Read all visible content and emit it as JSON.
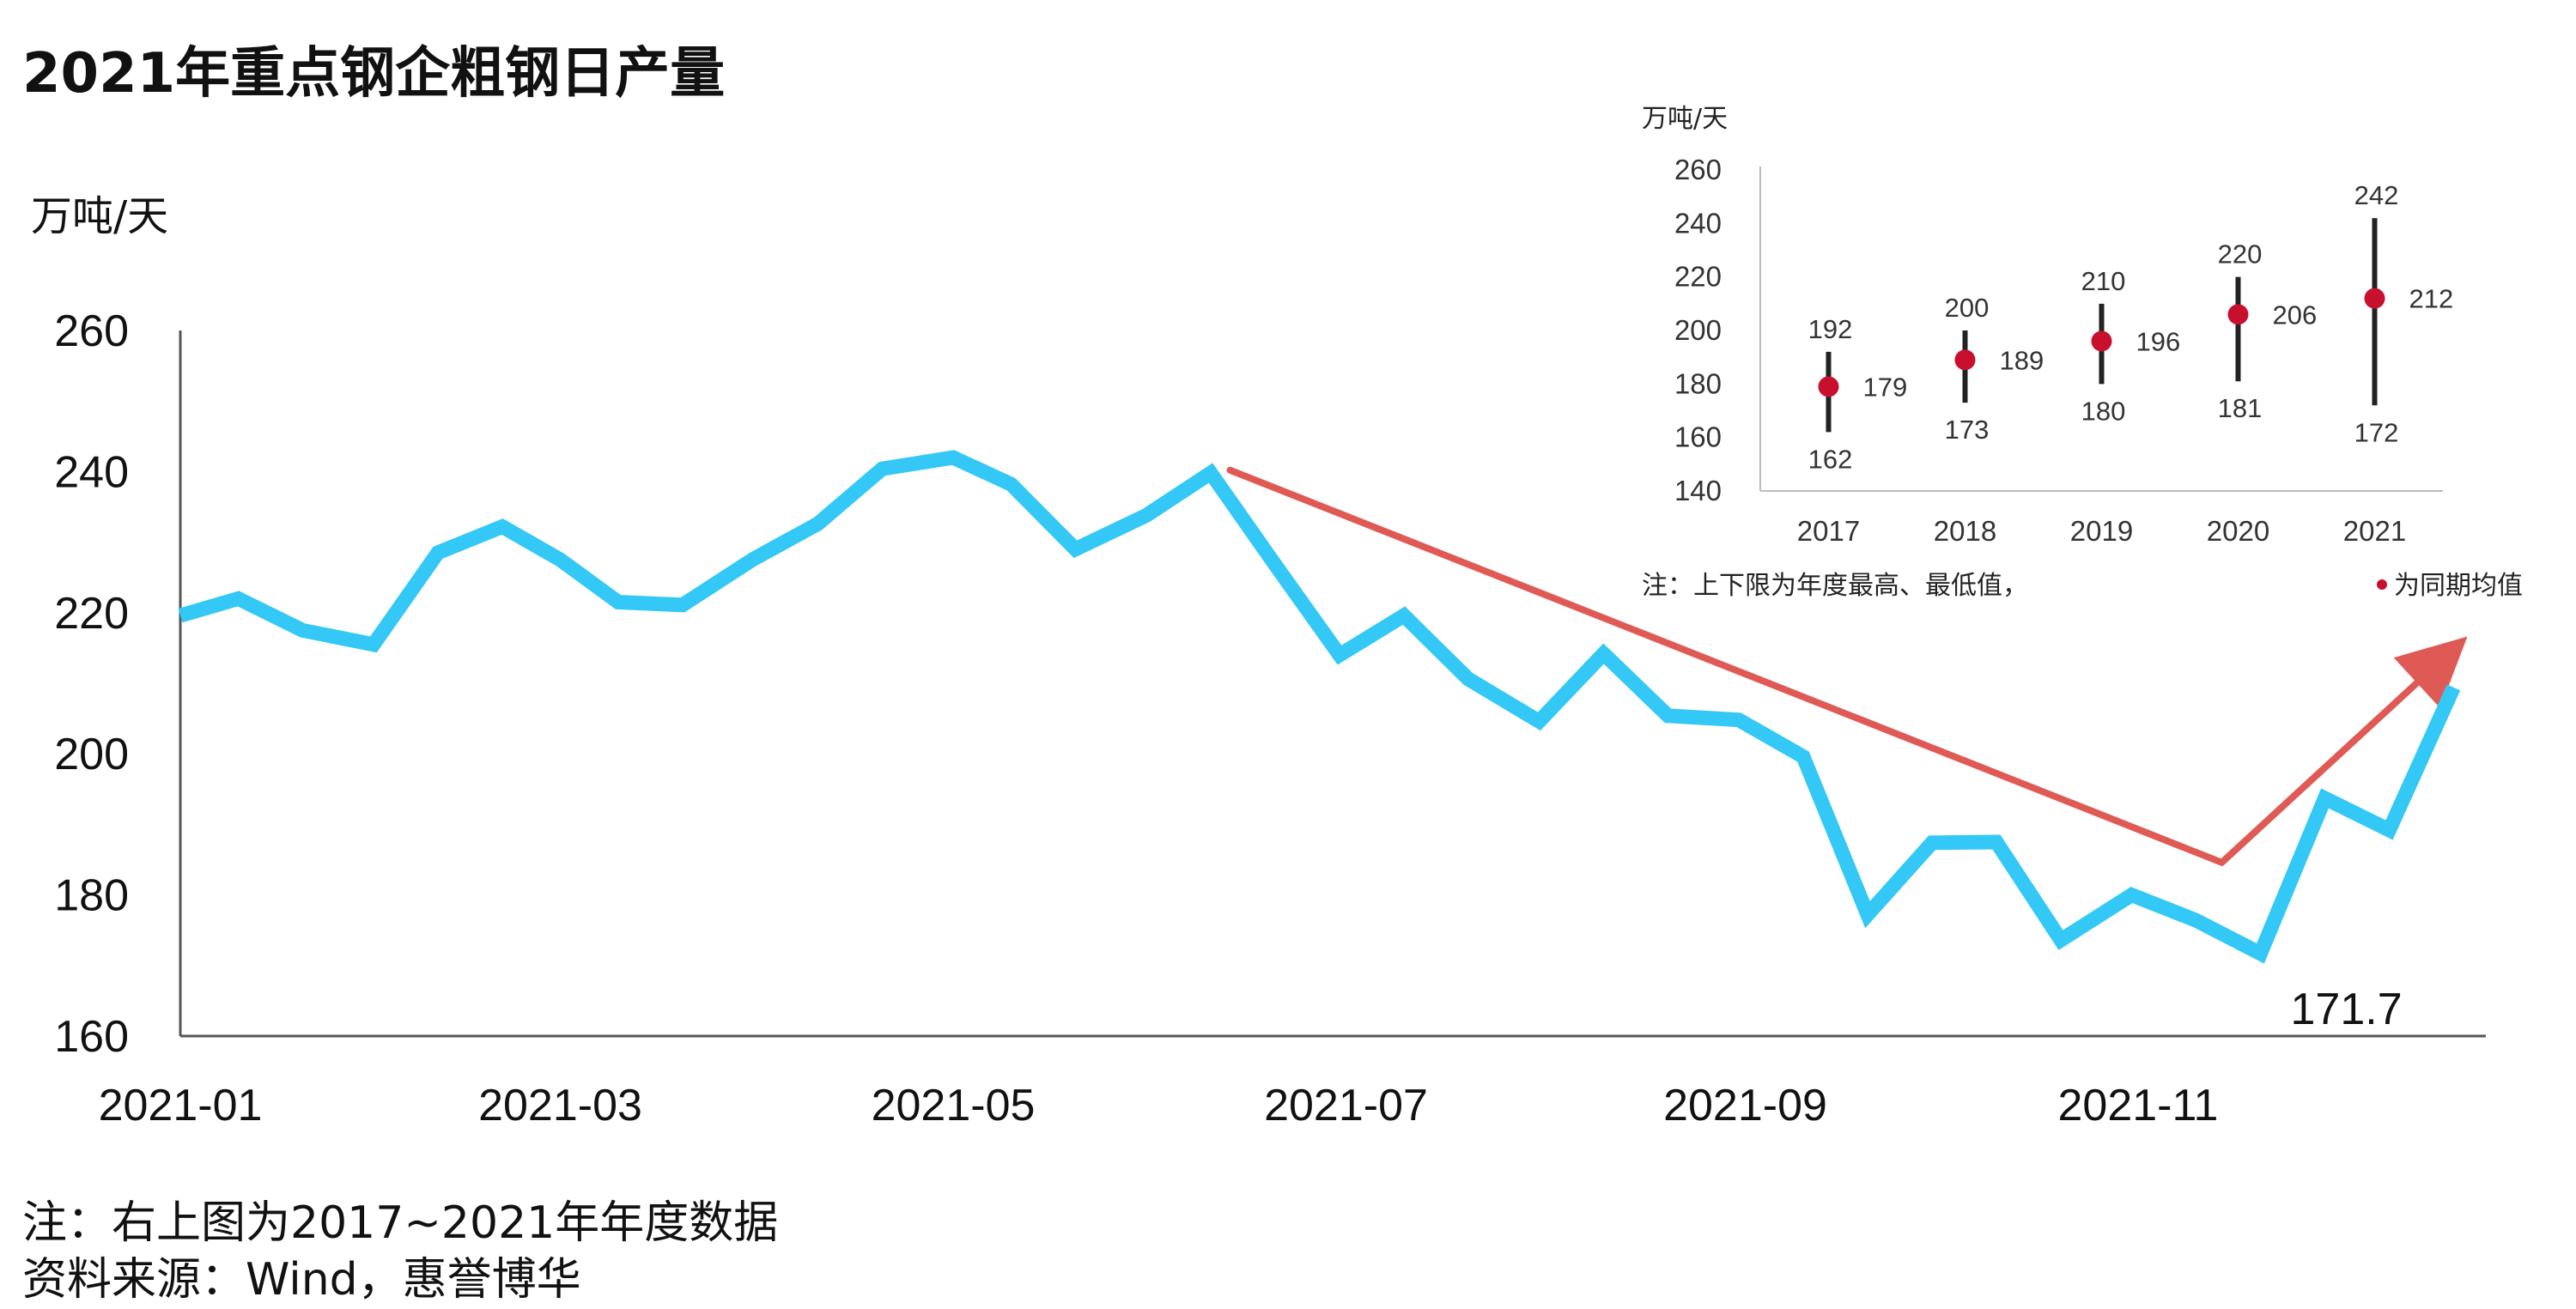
{
  "title": "2021年重点钢企粗钢日产量",
  "notes": {
    "line1": "注：右上图为2017~2021年年度数据",
    "line2": "资料来源：Wind，惠誉博华"
  },
  "colors": {
    "line": "#33c8f5",
    "trend": "#e05a55",
    "axis": "#555555",
    "inset_dot": "#c8102e",
    "inset_bar": "#222222"
  },
  "chart_data": [
    {
      "type": "line",
      "title": "2021年重点钢企粗钢日产量",
      "ylabel": "万吨/天",
      "ylim": [
        160,
        260
      ],
      "yticks": [
        "260",
        "240",
        "220",
        "200",
        "180",
        "160"
      ],
      "xlim": [
        "2021-01-01",
        "2021-12-25"
      ],
      "xticks": [
        "2021-01",
        "2021-03",
        "2021-05",
        "2021-07",
        "2021-09",
        "2021-11"
      ],
      "series": [
        {
          "x": [
            "2021-01-01",
            "2021-01-10",
            "2021-01-20",
            "2021-01-31",
            "2021-02-10",
            "2021-02-20",
            "2021-03-01",
            "2021-03-10",
            "2021-03-20",
            "2021-03-31",
            "2021-04-10",
            "2021-04-20",
            "2021-05-01",
            "2021-05-10",
            "2021-05-20",
            "2021-05-31",
            "2021-06-10",
            "2021-06-20",
            "2021-06-30",
            "2021-07-10",
            "2021-07-20",
            "2021-07-31",
            "2021-08-10",
            "2021-08-20",
            "2021-08-31",
            "2021-09-10",
            "2021-09-20",
            "2021-09-30",
            "2021-10-10",
            "2021-10-20",
            "2021-10-31",
            "2021-11-10",
            "2021-11-20",
            "2021-11-30",
            "2021-12-10",
            "2021-12-20"
          ],
          "values": [
            219.6,
            222.0,
            217.5,
            215.5,
            228.5,
            232.2,
            227.5,
            221.5,
            221.1,
            227.6,
            232.6,
            240.4,
            242.0,
            238.2,
            229.0,
            233.8,
            239.8,
            226.8,
            214.0,
            219.6,
            210.6,
            204.6,
            214.2,
            205.4,
            204.8,
            199.6,
            177.2,
            187.4,
            187.5,
            173.6,
            180.0,
            176.4,
            171.7,
            193.7,
            189.2,
            209.4
          ]
        }
      ],
      "annotations": [
        {
          "text": "171.7",
          "x": "2021-11-20",
          "y": 171.7
        }
      ],
      "trend_arrows": [
        {
          "from": {
            "x": "2021-06-13",
            "y": 240.2
          },
          "to": {
            "x": "2021-11-14",
            "y": 184.6
          },
          "arrowhead": false
        },
        {
          "from": {
            "x": "2021-11-14",
            "y": 184.6
          },
          "to": {
            "x": "2021-12-19",
            "y": 214.0
          },
          "arrowhead": true
        }
      ]
    },
    {
      "type": "errorbar",
      "ylabel": "万吨/天",
      "ylim": [
        140,
        260
      ],
      "yticks": [
        "260",
        "240",
        "220",
        "200",
        "180",
        "160",
        "140"
      ],
      "categories": [
        "2017",
        "2018",
        "2019",
        "2020",
        "2021"
      ],
      "max": [
        192,
        200,
        210,
        220,
        242
      ],
      "min": [
        162,
        173,
        180,
        181,
        172
      ],
      "mean": [
        179,
        189,
        196,
        206,
        212
      ],
      "note_prefix": "注：上下限为年度最高、最低值，",
      "note_suffix": "为同期均值"
    }
  ]
}
